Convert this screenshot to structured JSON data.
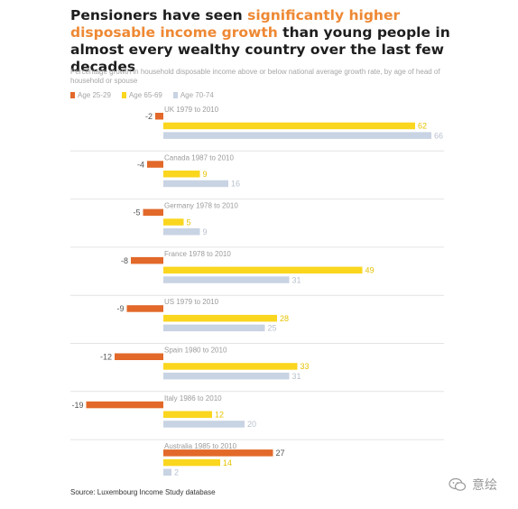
{
  "title": {
    "part1": "Pensioners have seen ",
    "highlight": "significantly higher disposable income growth",
    "part2": " than young people in almost every wealthy country over the last few decades"
  },
  "subtitle": "Percentage growth in household disposable income above or below national average growth rate, by age of head of household or spouse",
  "source": "Source: Luxembourg Income Study database",
  "watermark": {
    "text": "意绘",
    "icon": "wechat-icon"
  },
  "colors": {
    "age_25_29": "#e2692a",
    "age_65_69": "#fad61e",
    "age_70_74": "#c8d3e3",
    "grid": "#e4e4e4",
    "label": "#9b9b9b"
  },
  "chart_data": {
    "type": "bar",
    "orientation": "horizontal",
    "categories": [
      "UK 1979 to 2010",
      "Canada 1987 to 2010",
      "Germany 1978 to 2010",
      "France 1978 to 2010",
      "US 1979 to 2010",
      "Spain 1980 to 2010",
      "Italy 1986 to 2010",
      "Australia 1985 to 2010"
    ],
    "series": [
      {
        "name": "Age 25-29",
        "color": "#e2692a",
        "values": [
          -2,
          -4,
          -5,
          -8,
          -9,
          -12,
          -19,
          27
        ]
      },
      {
        "name": "Age 65-69",
        "color": "#fad61e",
        "values": [
          62,
          9,
          5,
          49,
          28,
          33,
          12,
          14
        ]
      },
      {
        "name": "Age 70-74",
        "color": "#c8d3e3",
        "values": [
          66,
          16,
          9,
          31,
          25,
          31,
          20,
          2
        ]
      }
    ],
    "legend": "top-left",
    "grid": false
  }
}
